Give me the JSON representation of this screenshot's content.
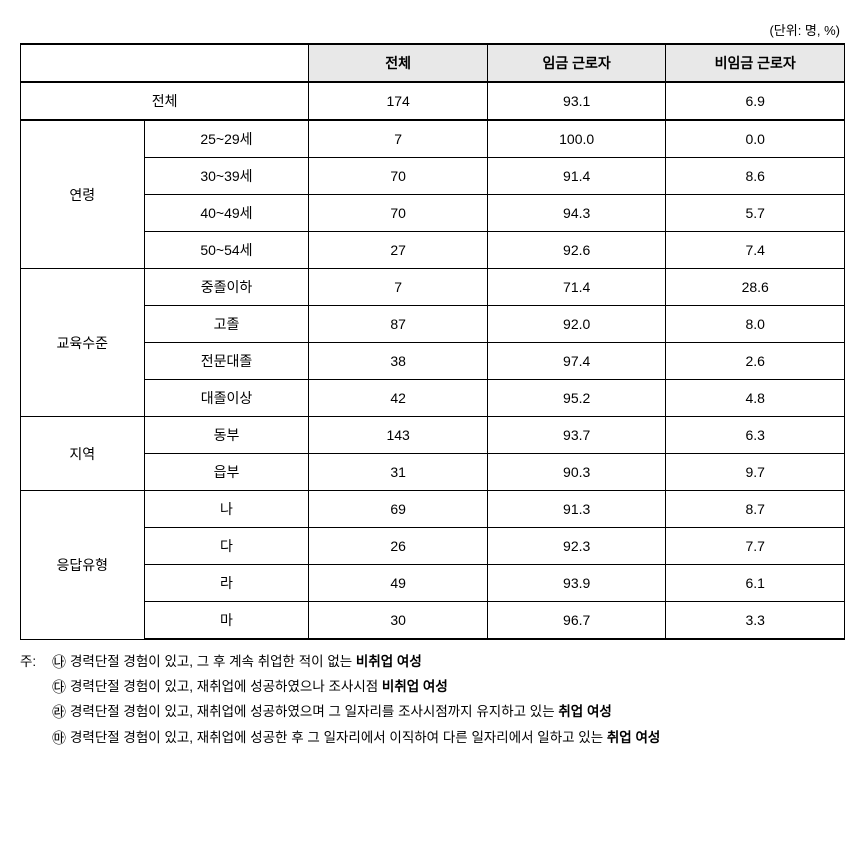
{
  "unit_label": "(단위: 명, %)",
  "headers": {
    "blank": "",
    "col1": "전체",
    "col2": "임금 근로자",
    "col3": "비임금 근로자"
  },
  "total_row": {
    "label": "전체",
    "v1": "174",
    "v2": "93.1",
    "v3": "6.9"
  },
  "groups": [
    {
      "name": "연령",
      "rows": [
        {
          "label": "25~29세",
          "v1": "7",
          "v2": "100.0",
          "v3": "0.0"
        },
        {
          "label": "30~39세",
          "v1": "70",
          "v2": "91.4",
          "v3": "8.6"
        },
        {
          "label": "40~49세",
          "v1": "70",
          "v2": "94.3",
          "v3": "5.7"
        },
        {
          "label": "50~54세",
          "v1": "27",
          "v2": "92.6",
          "v3": "7.4"
        }
      ]
    },
    {
      "name": "교육수준",
      "rows": [
        {
          "label": "중졸이하",
          "v1": "7",
          "v2": "71.4",
          "v3": "28.6"
        },
        {
          "label": "고졸",
          "v1": "87",
          "v2": "92.0",
          "v3": "8.0"
        },
        {
          "label": "전문대졸",
          "v1": "38",
          "v2": "97.4",
          "v3": "2.6"
        },
        {
          "label": "대졸이상",
          "v1": "42",
          "v2": "95.2",
          "v3": "4.8"
        }
      ]
    },
    {
      "name": "지역",
      "rows": [
        {
          "label": "동부",
          "v1": "143",
          "v2": "93.7",
          "v3": "6.3"
        },
        {
          "label": "읍부",
          "v1": "31",
          "v2": "90.3",
          "v3": "9.7"
        }
      ]
    },
    {
      "name": "응답유형",
      "rows": [
        {
          "label": "나",
          "v1": "69",
          "v2": "91.3",
          "v3": "8.7"
        },
        {
          "label": "다",
          "v1": "26",
          "v2": "92.3",
          "v3": "7.7"
        },
        {
          "label": "라",
          "v1": "49",
          "v2": "93.9",
          "v3": "6.1"
        },
        {
          "label": "마",
          "v1": "30",
          "v2": "96.7",
          "v3": "3.3"
        }
      ]
    }
  ],
  "notes": {
    "prefix": "주:",
    "items": [
      {
        "marker": "㉯",
        "text_pre": "경력단절 경험이 있고, 그 후 계속 취업한 적이 없는 ",
        "text_bold": "비취업 여성",
        "text_post": ""
      },
      {
        "marker": "㉰",
        "text_pre": "경력단절 경험이 있고, 재취업에 성공하였으나 조사시점 ",
        "text_bold": "비취업 여성",
        "text_post": ""
      },
      {
        "marker": "㉱",
        "text_pre": "경력단절 경험이 있고, 재취업에 성공하였으며 그 일자리를 조사시점까지 유지하고 있는 ",
        "text_bold": "취업 여성",
        "text_post": ""
      },
      {
        "marker": "㉲",
        "text_pre": "경력단절 경험이 있고, 재취업에 성공한 후 그 일자리에서 이직하여 다른 일자리에서 일하고 있는 ",
        "text_bold": "취업 여성",
        "text_post": ""
      }
    ]
  },
  "styling": {
    "table_border_color": "#000000",
    "header_background": "#e8e8e8",
    "body_background": "#ffffff",
    "font_family": "Malgun Gothic",
    "base_font_size": 14,
    "notes_font_size": 13.5,
    "container_width": 825,
    "cell_padding": "8px 4px",
    "header_border_thickness": 2,
    "normal_border_thickness": 1
  }
}
